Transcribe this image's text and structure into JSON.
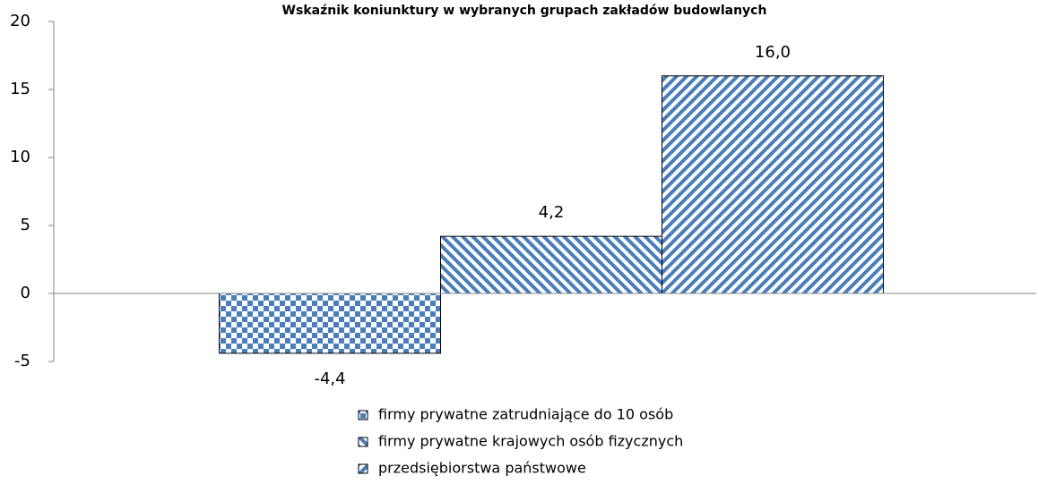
{
  "chart_data": {
    "type": "bar",
    "title": "Wskaźnik koniunktury w wybranych grupach zakładów budowlanych",
    "categories": [
      null
    ],
    "series": [
      {
        "name": "firmy prywatne zatrudniające do 10 osób",
        "color": "#4a7ebb",
        "values": [
          -4.4
        ],
        "value_labels": [
          "-4,4"
        ]
      },
      {
        "name": "firmy prywatne krajowych osób fizycznych",
        "color": "#4a7ebb",
        "values": [
          4.2
        ],
        "value_labels": [
          "4,2"
        ]
      },
      {
        "name": "przedsiębiorstwa państwowe",
        "color": "#4a7ebb",
        "values": [
          16.0
        ],
        "value_labels": [
          "16,0"
        ]
      }
    ],
    "ylim": [
      -5,
      20
    ],
    "yticks": [
      -5,
      0,
      5,
      10,
      15,
      20
    ],
    "grid": false,
    "legend": "bottom"
  }
}
